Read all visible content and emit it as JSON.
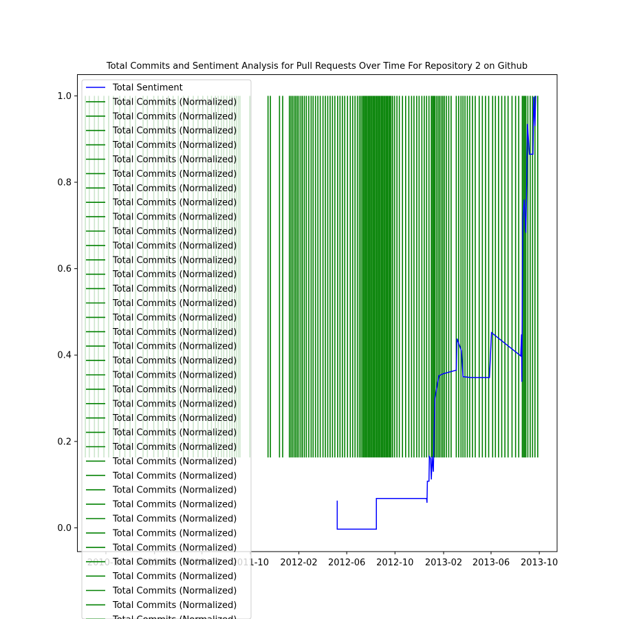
{
  "chart_data": {
    "type": "line",
    "title": "Total Commits and Sentiment Analysis for Pull Requests Over Time For Repository 2 on Github",
    "xlabel": "",
    "ylabel": "",
    "x_axis_type": "date",
    "xlim": [
      "2010-07-20",
      "2013-11-15"
    ],
    "ylim": [
      -0.055,
      1.05
    ],
    "y_ticks": [
      0.0,
      0.2,
      0.4,
      0.6,
      0.8,
      1.0
    ],
    "y_tick_labels": [
      "0.0",
      "0.2",
      "0.4",
      "0.6",
      "0.8",
      "1.0"
    ],
    "x_ticks": [
      "2010-10-01",
      "2011-02-01",
      "2011-06-01",
      "2011-10-01",
      "2012-02-01",
      "2012-06-01",
      "2012-10-01",
      "2013-02-01",
      "2013-06-01",
      "2013-10-01"
    ],
    "x_tick_labels": [
      "2010-10",
      "2011-02",
      "2011-06",
      "2011-10",
      "2012-02",
      "2012-06",
      "2012-10",
      "2013-02",
      "2013-06",
      "2013-10"
    ],
    "grid": false,
    "legend_placement": "top-left",
    "legend": {
      "entries": [
        "Total Sentiment",
        "Total Commits (Normalized)",
        "Total Commits (Normalized)",
        "Total Commits (Normalized)",
        "Total Commits (Normalized)",
        "Total Commits (Normalized)",
        "Total Commits (Normalized)",
        "Total Commits (Normalized)",
        "Total Commits (Normalized)",
        "Total Commits (Normalized)",
        "Total Commits (Normalized)",
        "Total Commits (Normalized)",
        "Total Commits (Normalized)",
        "Total Commits (Normalized)",
        "Total Commits (Normalized)",
        "Total Commits (Normalized)",
        "Total Commits (Normalized)",
        "Total Commits (Normalized)",
        "Total Commits (Normalized)",
        "Total Commits (Normalized)",
        "Total Commits (Normalized)",
        "Total Commits (Normalized)",
        "Total Commits (Normalized)",
        "Total Commits (Normalized)",
        "Total Commits (Normalized)",
        "Total Commits (Normalized)",
        "Total Commits (Normalized)",
        "Total Commits (Normalized)",
        "Total Commits (Normalized)",
        "Total Commits (Normalized)",
        "Total Commits (Normalized)",
        "Total Commits (Normalized)",
        "Total Commits (Normalized)",
        "Total Commits (Normalized)",
        "Total Commits (Normalized)",
        "Total Commits (Normalized)",
        "Total Commits (Normalized)",
        "Total Commits (Normalized)",
        "Total Commits (Normalized)"
      ],
      "colors": [
        "#0000ff",
        "#008000"
      ]
    },
    "colors": {
      "sentiment": "#0000ff",
      "commits": "#008000"
    },
    "series": [
      {
        "name": "Total Sentiment",
        "color": "#0000ff",
        "points": [
          [
            "2012-05-08",
            0.063
          ],
          [
            "2012-05-08",
            -0.003
          ],
          [
            "2012-08-15",
            -0.003
          ],
          [
            "2012-08-15",
            0.068
          ],
          [
            "2012-12-20",
            0.068
          ],
          [
            "2012-12-21",
            0.058
          ],
          [
            "2012-12-22",
            0.108
          ],
          [
            "2012-12-26",
            0.108
          ],
          [
            "2012-12-27",
            0.165
          ],
          [
            "2012-12-30",
            0.16
          ],
          [
            "2013-01-01",
            0.112
          ],
          [
            "2013-01-03",
            0.165
          ],
          [
            "2013-01-06",
            0.13
          ],
          [
            "2013-01-10",
            0.3
          ],
          [
            "2013-01-20",
            0.352
          ],
          [
            "2013-02-01",
            0.357
          ],
          [
            "2013-03-05",
            0.365
          ],
          [
            "2013-03-07",
            0.438
          ],
          [
            "2013-03-18",
            0.41
          ],
          [
            "2013-03-22",
            0.35
          ],
          [
            "2013-04-10",
            0.348
          ],
          [
            "2013-05-28",
            0.348
          ],
          [
            "2013-06-02",
            0.452
          ],
          [
            "2013-08-15",
            0.398
          ],
          [
            "2013-08-17",
            0.448
          ],
          [
            "2013-08-18",
            0.338
          ],
          [
            "2013-08-20",
            0.71
          ],
          [
            "2013-08-24",
            0.76
          ],
          [
            "2013-08-28",
            0.683
          ],
          [
            "2013-08-30",
            0.795
          ],
          [
            "2013-09-01",
            0.935
          ],
          [
            "2013-09-06",
            0.865
          ],
          [
            "2013-09-15",
            0.865
          ],
          [
            "2013-09-17",
            0.998
          ],
          [
            "2013-09-20",
            0.93
          ],
          [
            "2013-09-22",
            1.0
          ]
        ]
      },
      {
        "name": "Total Commits (Normalized)",
        "color": "#008000",
        "y_range": [
          0.163,
          1.0
        ],
        "bar_dates": [
          "2010-08-10",
          "2010-08-20",
          "2010-09-02",
          "2010-09-12",
          "2010-09-26",
          "2010-10-08",
          "2010-10-20",
          "2010-11-05",
          "2010-11-18",
          "2010-12-01",
          "2010-12-15",
          "2011-01-03",
          "2011-01-14",
          "2011-01-30",
          "2011-02-10",
          "2011-02-22",
          "2011-03-08",
          "2011-03-20",
          "2011-04-02",
          "2011-04-15",
          "2011-04-28",
          "2011-05-10",
          "2011-05-22",
          "2011-06-03",
          "2011-06-15",
          "2011-06-25",
          "2011-07-05",
          "2011-07-12",
          "2011-07-20",
          "2011-07-26",
          "2011-08-03",
          "2011-08-10",
          "2011-08-16",
          "2011-08-22",
          "2011-08-27",
          "2011-09-01",
          "2011-09-05",
          "2011-09-30",
          "2011-11-15",
          "2011-11-21",
          "2011-12-14",
          "2011-12-22",
          "2012-01-08",
          "2012-01-12",
          "2012-01-16",
          "2012-01-20",
          "2012-01-24",
          "2012-01-28",
          "2012-02-01",
          "2012-02-06",
          "2012-02-10",
          "2012-02-15",
          "2012-02-20",
          "2012-02-26",
          "2012-03-03",
          "2012-03-08",
          "2012-03-14",
          "2012-03-20",
          "2012-03-26",
          "2012-04-02",
          "2012-04-08",
          "2012-04-14",
          "2012-04-20",
          "2012-04-26",
          "2012-05-02",
          "2012-05-09",
          "2012-05-15",
          "2012-05-21",
          "2012-05-27",
          "2012-06-03",
          "2012-06-10",
          "2012-06-16",
          "2012-06-22",
          "2012-06-28",
          "2012-07-03",
          "2012-07-07",
          "2012-07-11",
          "2012-07-14",
          "2012-07-17",
          "2012-07-20",
          "2012-07-23",
          "2012-07-26",
          "2012-07-29",
          "2012-08-01",
          "2012-08-04",
          "2012-08-07",
          "2012-08-10",
          "2012-08-13",
          "2012-08-16",
          "2012-08-19",
          "2012-08-22",
          "2012-08-25",
          "2012-08-28",
          "2012-08-31",
          "2012-09-03",
          "2012-09-06",
          "2012-09-09",
          "2012-09-12",
          "2012-09-15",
          "2012-09-18",
          "2012-09-21",
          "2012-09-25",
          "2012-09-30",
          "2012-10-06",
          "2012-10-12",
          "2012-10-20",
          "2012-10-28",
          "2012-11-05",
          "2012-11-12",
          "2012-11-18",
          "2012-11-25",
          "2012-12-01",
          "2012-12-08",
          "2012-12-14",
          "2012-12-20",
          "2012-12-26",
          "2013-01-01",
          "2013-01-04",
          "2013-01-07",
          "2013-01-10",
          "2013-01-14",
          "2013-01-18",
          "2013-01-22",
          "2013-01-26",
          "2013-01-30",
          "2013-02-03",
          "2013-02-08",
          "2013-02-14",
          "2013-02-20",
          "2013-03-05",
          "2013-03-11",
          "2013-03-17",
          "2013-03-22",
          "2013-03-27",
          "2013-04-02",
          "2013-04-08",
          "2013-04-15",
          "2013-04-22",
          "2013-05-02",
          "2013-05-10",
          "2013-05-18",
          "2013-05-26",
          "2013-06-05",
          "2013-06-12",
          "2013-06-20",
          "2013-06-28",
          "2013-07-06",
          "2013-07-14",
          "2013-07-24",
          "2013-08-02",
          "2013-08-10",
          "2013-08-19",
          "2013-08-22",
          "2013-08-25",
          "2013-08-28",
          "2013-09-02",
          "2013-09-08",
          "2013-09-14",
          "2013-09-20",
          "2013-09-27"
        ]
      }
    ]
  }
}
